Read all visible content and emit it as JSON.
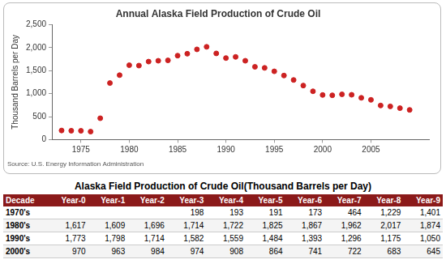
{
  "chart_data": {
    "type": "scatter",
    "title": "Annual Alaska Field Production of Crude Oil",
    "y_label": "Thousand Barrels per Day",
    "source": "Source: U.S. Energy Information Administration",
    "x": [
      1973,
      1974,
      1975,
      1976,
      1977,
      1978,
      1979,
      1980,
      1981,
      1982,
      1983,
      1984,
      1985,
      1986,
      1987,
      1988,
      1989,
      1990,
      1991,
      1992,
      1993,
      1994,
      1995,
      1996,
      1997,
      1998,
      1999,
      2000,
      2001,
      2002,
      2003,
      2004,
      2005,
      2006,
      2007,
      2008,
      2009
    ],
    "values": [
      198,
      193,
      191,
      173,
      464,
      1229,
      1401,
      1617,
      1609,
      1696,
      1714,
      1722,
      1825,
      1867,
      1962,
      2017,
      1874,
      1773,
      1798,
      1714,
      1582,
      1559,
      1484,
      1393,
      1296,
      1175,
      1050,
      970,
      963,
      984,
      974,
      908,
      864,
      741,
      722,
      683,
      645
    ],
    "color": "#cc2222",
    "marker": "circle",
    "xlim": [
      1972,
      2011
    ],
    "xticks": [
      1975,
      1980,
      1985,
      1990,
      1995,
      2000,
      2005
    ],
    "ylim": [
      0,
      2500
    ],
    "yticks": [
      0,
      500,
      {
        "value": 1000,
        "label": "1,000"
      },
      {
        "value": 1500,
        "label": "1,500"
      },
      {
        "value": 2000,
        "label": "2,000"
      },
      {
        "value": 2500,
        "label": "2,500"
      }
    ],
    "grid": false
  },
  "table": {
    "title": "Alaska Field Production of Crude Oil(Thousand Barrels per Day)",
    "header": [
      "Decade",
      "Year-0",
      "Year-1",
      "Year-2",
      "Year-3",
      "Year-4",
      "Year-5",
      "Year-6",
      "Year-7",
      "Year-8",
      "Year-9"
    ],
    "rows": [
      [
        "1970's",
        null,
        null,
        null,
        "198",
        "193",
        "191",
        "173",
        "464",
        "1,229",
        "1,401"
      ],
      [
        "1980's",
        "1,617",
        "1,609",
        "1,696",
        "1,714",
        "1,722",
        "1,825",
        "1,867",
        "1,962",
        "2,017",
        "1,874"
      ],
      [
        "1990's",
        "1,773",
        "1,798",
        "1,714",
        "1,582",
        "1,559",
        "1,484",
        "1,393",
        "1,296",
        "1,175",
        "1,050"
      ],
      [
        "2000's",
        "970",
        "963",
        "984",
        "974",
        "908",
        "864",
        "741",
        "722",
        "683",
        "645"
      ]
    ]
  }
}
